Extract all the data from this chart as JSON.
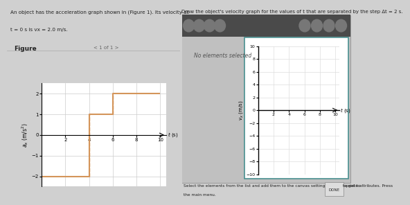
{
  "fig_bg": "#d0d0d0",
  "left_bg": "#e8e8e8",
  "right_bg": "#d0d0d0",
  "toolbar_bg": "#555555",
  "canvas_bg": "#c8c8c8",
  "vel_panel_bg": "#ffffff",
  "vel_border": "#4a9090",
  "accel_ylabel": "a_x (m/s²)",
  "accel_xlabel": "t (s)",
  "accel_xlim": [
    0,
    10.5
  ],
  "accel_ylim": [
    -2.5,
    2.5
  ],
  "accel_yticks": [
    -2,
    -1,
    0,
    1,
    2
  ],
  "accel_xticks": [
    2,
    4,
    6,
    8,
    10
  ],
  "accel_step_t": [
    0,
    4,
    4,
    6,
    6,
    10
  ],
  "accel_step_a": [
    -2,
    -2,
    1,
    1,
    2,
    2
  ],
  "accel_color": "#d4955a",
  "vel_ylabel": "v_x (m/s)",
  "vel_xlabel": "t (s)",
  "vel_xlim": [
    0,
    10.5
  ],
  "vel_ylim": [
    -10,
    10
  ],
  "vel_yticks": [
    -10,
    -8,
    -6,
    -4,
    -2,
    0,
    2,
    4,
    6,
    8,
    10
  ],
  "vel_xticks": [
    2,
    4,
    6,
    8,
    10
  ],
  "text_problem_line1": "An object has the acceleration graph shown in (Figure 1). Its velocity at",
  "text_problem_line2": "t = 0 s is v",
  "text_problem_line2b": "x",
  "text_problem_line2c": " = 2.0 m/s.",
  "text_instruction": "Draw the object's velocity graph for the values of t that are separated by the step Δt = 2 s.",
  "text_no_elements": "No elements selected",
  "text_figure_label": "Figure",
  "text_page": "1 of 1",
  "text_select": "Select the elements from the list and add them to the canvas setting the appropriate attributes. Press",
  "text_done": "DONE",
  "text_main_menu": " to get to",
  "text_main_menu2": "the main menu."
}
